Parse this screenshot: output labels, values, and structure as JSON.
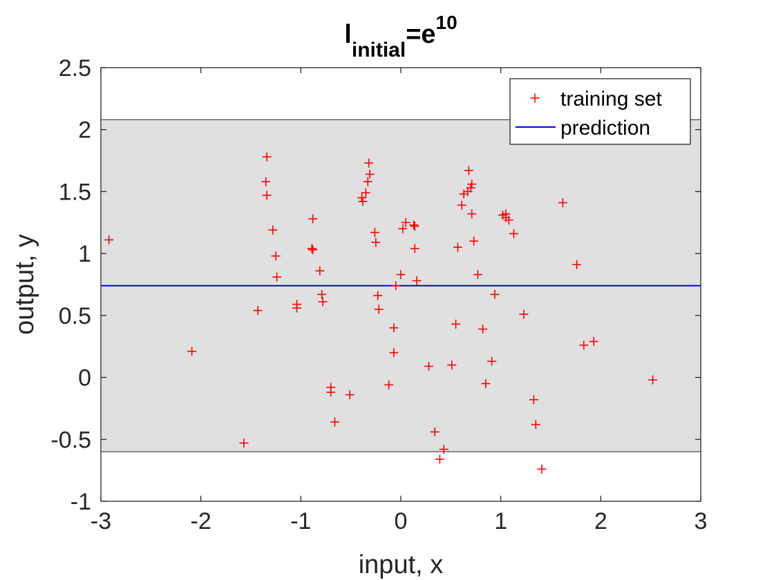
{
  "chart_data": {
    "type": "scatter",
    "title": {
      "base": "l",
      "subscript": "initial",
      "middle": "=e",
      "superscript": "10"
    },
    "xlabel": "input, x",
    "ylabel": "output, y",
    "xlim": [
      -3,
      3
    ],
    "ylim": [
      -1,
      2.5
    ],
    "xticks": [
      "-3",
      "-2",
      "-1",
      "0",
      "1",
      "2",
      "3"
    ],
    "yticks": [
      "-1",
      "-0.5",
      "0",
      "0.5",
      "1",
      "1.5",
      "2",
      "2.5"
    ],
    "legend_position": "top-right",
    "band": {
      "lower": -0.6,
      "upper": 2.08,
      "color": "#e0e0e0"
    },
    "series": [
      {
        "name": "training set",
        "marker": "+",
        "color": "#ff0000",
        "points": [
          [
            -2.92,
            1.11
          ],
          [
            -2.09,
            0.21
          ],
          [
            -1.57,
            -0.53
          ],
          [
            -1.43,
            0.54
          ],
          [
            -1.34,
            1.78
          ],
          [
            -1.35,
            1.58
          ],
          [
            -1.34,
            1.47
          ],
          [
            -1.28,
            1.19
          ],
          [
            -1.25,
            0.98
          ],
          [
            -1.24,
            0.81
          ],
          [
            -1.04,
            0.59
          ],
          [
            -1.04,
            0.56
          ],
          [
            -0.88,
            1.28
          ],
          [
            -0.89,
            1.04
          ],
          [
            -0.88,
            1.03
          ],
          [
            -0.81,
            0.86
          ],
          [
            -0.79,
            0.67
          ],
          [
            -0.78,
            0.61
          ],
          [
            -0.7,
            -0.08
          ],
          [
            -0.7,
            -0.12
          ],
          [
            -0.66,
            -0.36
          ],
          [
            -0.51,
            -0.14
          ],
          [
            -0.39,
            1.45
          ],
          [
            -0.38,
            1.42
          ],
          [
            -0.35,
            1.49
          ],
          [
            -0.32,
            1.73
          ],
          [
            -0.31,
            1.64
          ],
          [
            -0.33,
            1.58
          ],
          [
            -0.26,
            1.17
          ],
          [
            -0.25,
            1.09
          ],
          [
            -0.23,
            0.66
          ],
          [
            -0.22,
            0.55
          ],
          [
            -0.12,
            -0.06
          ],
          [
            -0.07,
            0.4
          ],
          [
            -0.07,
            0.2
          ],
          [
            -0.05,
            0.74
          ],
          [
            0.0,
            0.83
          ],
          [
            0.02,
            1.2
          ],
          [
            0.05,
            1.25
          ],
          [
            0.13,
            1.23
          ],
          [
            0.14,
            1.22
          ],
          [
            0.14,
            1.04
          ],
          [
            0.16,
            0.78
          ],
          [
            0.28,
            0.09
          ],
          [
            0.34,
            -0.44
          ],
          [
            0.39,
            -0.66
          ],
          [
            0.43,
            -0.58
          ],
          [
            0.51,
            0.1
          ],
          [
            0.55,
            0.43
          ],
          [
            0.57,
            1.05
          ],
          [
            0.61,
            1.39
          ],
          [
            0.63,
            1.48
          ],
          [
            0.67,
            1.5
          ],
          [
            0.68,
            1.67
          ],
          [
            0.7,
            1.53
          ],
          [
            0.71,
            1.56
          ],
          [
            0.71,
            1.32
          ],
          [
            0.73,
            1.1
          ],
          [
            0.77,
            0.83
          ],
          [
            0.82,
            0.39
          ],
          [
            0.85,
            -0.05
          ],
          [
            0.91,
            0.13
          ],
          [
            0.94,
            0.67
          ],
          [
            1.02,
            1.31
          ],
          [
            1.05,
            1.32
          ],
          [
            1.05,
            1.29
          ],
          [
            1.08,
            1.27
          ],
          [
            1.13,
            1.16
          ],
          [
            1.23,
            0.51
          ],
          [
            1.33,
            -0.18
          ],
          [
            1.35,
            -0.38
          ],
          [
            1.41,
            -0.74
          ],
          [
            1.62,
            1.41
          ],
          [
            1.76,
            0.91
          ],
          [
            1.83,
            0.26
          ],
          [
            1.93,
            0.29
          ],
          [
            2.52,
            -0.02
          ]
        ]
      },
      {
        "name": "prediction",
        "type": "line",
        "color": "#0000ff",
        "y_constant": 0.74
      }
    ]
  }
}
